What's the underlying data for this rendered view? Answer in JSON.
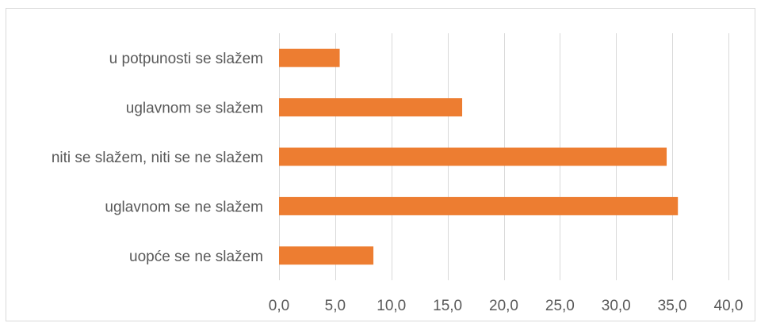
{
  "chart_data": {
    "type": "bar",
    "orientation": "horizontal",
    "categories": [
      "u potpunosti se slažem",
      "uglavnom se slažem",
      "niti se slažem, niti se ne slažem",
      "uglavnom se ne slažem",
      "uopće se ne slažem"
    ],
    "values": [
      5.4,
      16.3,
      34.5,
      35.5,
      8.4
    ],
    "xlim": [
      0,
      40
    ],
    "x_ticks": [
      0,
      5,
      10,
      15,
      20,
      25,
      30,
      35,
      40
    ],
    "x_tick_labels": [
      "0,0",
      "5,0",
      "10,0",
      "15,0",
      "20,0",
      "25,0",
      "30,0",
      "35,0",
      "40,0"
    ],
    "title": "",
    "xlabel": "",
    "ylabel": "",
    "grid": true,
    "bar_color": "#ed7d31",
    "legend": "none"
  }
}
